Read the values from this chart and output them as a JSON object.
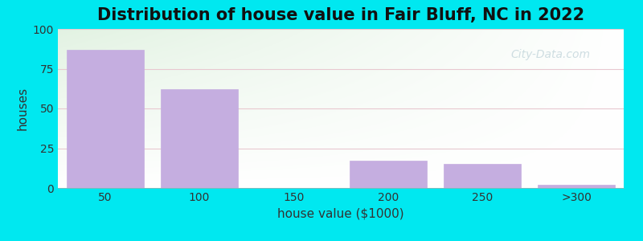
{
  "title": "Distribution of house value in Fair Bluff, NC in 2022",
  "xlabel": "house value ($1000)",
  "ylabel": "houses",
  "categories": [
    "50",
    "100",
    "150",
    "200",
    "250",
    ">300"
  ],
  "values": [
    87,
    62,
    0,
    17,
    15,
    2
  ],
  "bar_color": "#c5aee0",
  "bar_edge_color": "#c5aee0",
  "ylim": [
    0,
    100
  ],
  "yticks": [
    0,
    25,
    50,
    75,
    100
  ],
  "background_outer": "#00e8f0",
  "grad_top_left": "#d6edd6",
  "grad_bottom_right": "#ffffff",
  "grid_color": "#e8c8d0",
  "title_fontsize": 15,
  "axis_label_fontsize": 11,
  "tick_fontsize": 10,
  "bar_width": 0.82,
  "watermark": "City-Data.com",
  "watermark_color": "#b0c8d0",
  "watermark_alpha": 0.6
}
